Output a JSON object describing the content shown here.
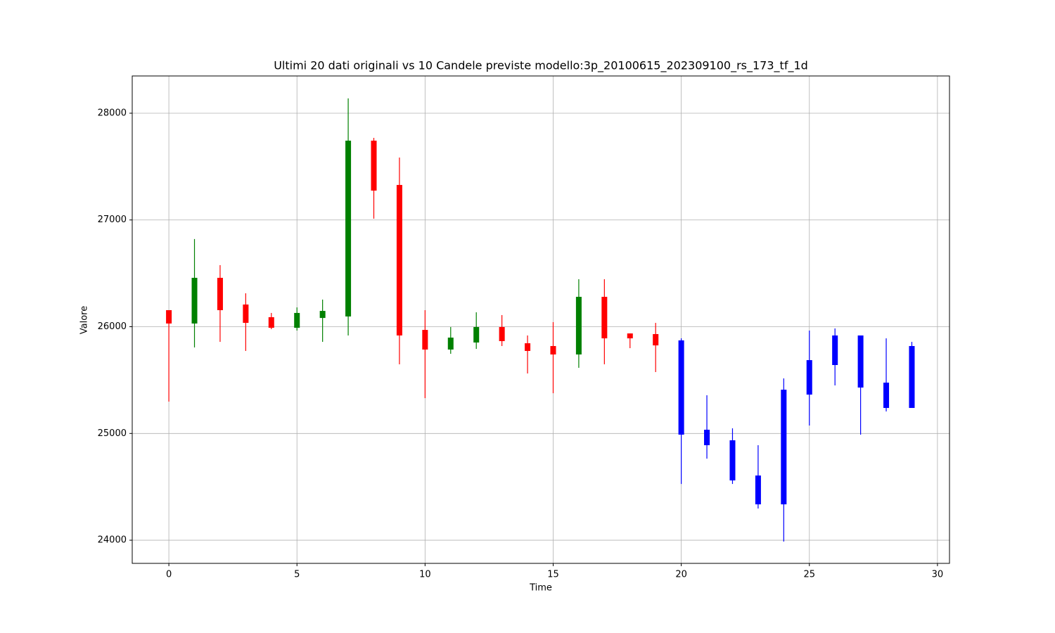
{
  "chart_data": {
    "type": "candlestick",
    "title": "Ultimi 20 dati originali vs 10 Candele previste modello:3p_20100615_202309100_rs_173_tf_1d",
    "x_label": "Time",
    "y_label": "Valore",
    "x": [
      0,
      1,
      2,
      3,
      4,
      5,
      6,
      7,
      8,
      9,
      10,
      11,
      12,
      13,
      14,
      15,
      16,
      17,
      18,
      19,
      20,
      21,
      22,
      23,
      24,
      25,
      26,
      27,
      28,
      29
    ],
    "open": [
      26155,
      26030,
      26458,
      26208,
      26089,
      25990,
      26082,
      26096,
      27743,
      27328,
      25970,
      25786,
      25852,
      25997,
      25845,
      25819,
      25740,
      26280,
      25937,
      25931,
      25872,
      25035,
      24936,
      24606,
      24336,
      25364,
      25641,
      25918,
      25476,
      25239
    ],
    "high": [
      26155,
      26821,
      26577,
      26313,
      26129,
      26181,
      26254,
      28139,
      27769,
      27585,
      26155,
      25997,
      26135,
      26109,
      25918,
      26043,
      26445,
      26445,
      25937,
      26036,
      25891,
      25358,
      25048,
      24890,
      25516,
      25964,
      25984,
      25918,
      25891,
      25858
    ],
    "low": [
      25298,
      25806,
      25858,
      25773,
      25977,
      25964,
      25858,
      25918,
      27012,
      25648,
      25331,
      25746,
      25792,
      25819,
      25562,
      25377,
      25615,
      25648,
      25799,
      25575,
      24527,
      24764,
      24527,
      24297,
      23987,
      25074,
      25450,
      24989,
      25206,
      25239
    ],
    "close": [
      26030,
      26458,
      26155,
      26036,
      25990,
      26129,
      26148,
      27743,
      27275,
      25918,
      25786,
      25898,
      25997,
      25865,
      25773,
      25740,
      26280,
      25891,
      25891,
      25825,
      24989,
      24890,
      24560,
      24336,
      25410,
      25687,
      25918,
      25430,
      25239,
      25819
    ],
    "colors": [
      "red",
      "green",
      "red",
      "red",
      "red",
      "green",
      "green",
      "green",
      "red",
      "red",
      "red",
      "green",
      "green",
      "red",
      "red",
      "red",
      "green",
      "red",
      "red",
      "red",
      "blue",
      "blue",
      "blue",
      "blue",
      "blue",
      "blue",
      "blue",
      "blue",
      "blue",
      "blue"
    ],
    "xlim": [
      -1.43,
      30.47
    ],
    "ylim": [
      23783,
      28349
    ],
    "xticks": [
      0,
      5,
      10,
      15,
      20,
      25,
      30
    ],
    "yticks": [
      24000,
      25000,
      26000,
      27000,
      28000
    ],
    "grid": true
  }
}
